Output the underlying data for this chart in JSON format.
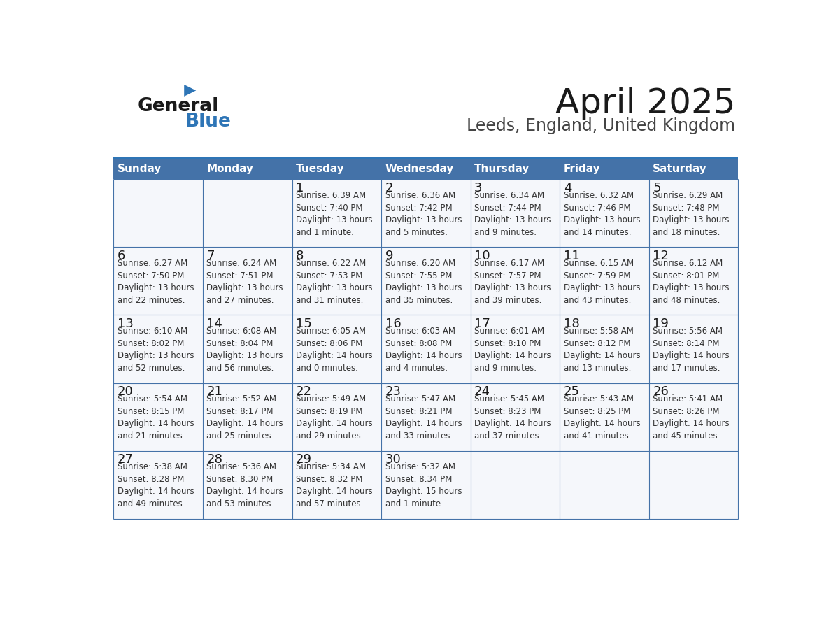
{
  "title": "April 2025",
  "subtitle": "Leeds, England, United Kingdom",
  "days_of_week": [
    "Sunday",
    "Monday",
    "Tuesday",
    "Wednesday",
    "Thursday",
    "Friday",
    "Saturday"
  ],
  "header_bg": "#4472a8",
  "header_text": "#ffffff",
  "border_color": "#4472a8",
  "text_color": "#333333",
  "day_num_color": "#222222",
  "cell_bg": "#f5f7fb",
  "calendar_data": [
    [
      {
        "day": null,
        "text": ""
      },
      {
        "day": null,
        "text": ""
      },
      {
        "day": 1,
        "text": "Sunrise: 6:39 AM\nSunset: 7:40 PM\nDaylight: 13 hours\nand 1 minute."
      },
      {
        "day": 2,
        "text": "Sunrise: 6:36 AM\nSunset: 7:42 PM\nDaylight: 13 hours\nand 5 minutes."
      },
      {
        "day": 3,
        "text": "Sunrise: 6:34 AM\nSunset: 7:44 PM\nDaylight: 13 hours\nand 9 minutes."
      },
      {
        "day": 4,
        "text": "Sunrise: 6:32 AM\nSunset: 7:46 PM\nDaylight: 13 hours\nand 14 minutes."
      },
      {
        "day": 5,
        "text": "Sunrise: 6:29 AM\nSunset: 7:48 PM\nDaylight: 13 hours\nand 18 minutes."
      }
    ],
    [
      {
        "day": 6,
        "text": "Sunrise: 6:27 AM\nSunset: 7:50 PM\nDaylight: 13 hours\nand 22 minutes."
      },
      {
        "day": 7,
        "text": "Sunrise: 6:24 AM\nSunset: 7:51 PM\nDaylight: 13 hours\nand 27 minutes."
      },
      {
        "day": 8,
        "text": "Sunrise: 6:22 AM\nSunset: 7:53 PM\nDaylight: 13 hours\nand 31 minutes."
      },
      {
        "day": 9,
        "text": "Sunrise: 6:20 AM\nSunset: 7:55 PM\nDaylight: 13 hours\nand 35 minutes."
      },
      {
        "day": 10,
        "text": "Sunrise: 6:17 AM\nSunset: 7:57 PM\nDaylight: 13 hours\nand 39 minutes."
      },
      {
        "day": 11,
        "text": "Sunrise: 6:15 AM\nSunset: 7:59 PM\nDaylight: 13 hours\nand 43 minutes."
      },
      {
        "day": 12,
        "text": "Sunrise: 6:12 AM\nSunset: 8:01 PM\nDaylight: 13 hours\nand 48 minutes."
      }
    ],
    [
      {
        "day": 13,
        "text": "Sunrise: 6:10 AM\nSunset: 8:02 PM\nDaylight: 13 hours\nand 52 minutes."
      },
      {
        "day": 14,
        "text": "Sunrise: 6:08 AM\nSunset: 8:04 PM\nDaylight: 13 hours\nand 56 minutes."
      },
      {
        "day": 15,
        "text": "Sunrise: 6:05 AM\nSunset: 8:06 PM\nDaylight: 14 hours\nand 0 minutes."
      },
      {
        "day": 16,
        "text": "Sunrise: 6:03 AM\nSunset: 8:08 PM\nDaylight: 14 hours\nand 4 minutes."
      },
      {
        "day": 17,
        "text": "Sunrise: 6:01 AM\nSunset: 8:10 PM\nDaylight: 14 hours\nand 9 minutes."
      },
      {
        "day": 18,
        "text": "Sunrise: 5:58 AM\nSunset: 8:12 PM\nDaylight: 14 hours\nand 13 minutes."
      },
      {
        "day": 19,
        "text": "Sunrise: 5:56 AM\nSunset: 8:14 PM\nDaylight: 14 hours\nand 17 minutes."
      }
    ],
    [
      {
        "day": 20,
        "text": "Sunrise: 5:54 AM\nSunset: 8:15 PM\nDaylight: 14 hours\nand 21 minutes."
      },
      {
        "day": 21,
        "text": "Sunrise: 5:52 AM\nSunset: 8:17 PM\nDaylight: 14 hours\nand 25 minutes."
      },
      {
        "day": 22,
        "text": "Sunrise: 5:49 AM\nSunset: 8:19 PM\nDaylight: 14 hours\nand 29 minutes."
      },
      {
        "day": 23,
        "text": "Sunrise: 5:47 AM\nSunset: 8:21 PM\nDaylight: 14 hours\nand 33 minutes."
      },
      {
        "day": 24,
        "text": "Sunrise: 5:45 AM\nSunset: 8:23 PM\nDaylight: 14 hours\nand 37 minutes."
      },
      {
        "day": 25,
        "text": "Sunrise: 5:43 AM\nSunset: 8:25 PM\nDaylight: 14 hours\nand 41 minutes."
      },
      {
        "day": 26,
        "text": "Sunrise: 5:41 AM\nSunset: 8:26 PM\nDaylight: 14 hours\nand 45 minutes."
      }
    ],
    [
      {
        "day": 27,
        "text": "Sunrise: 5:38 AM\nSunset: 8:28 PM\nDaylight: 14 hours\nand 49 minutes."
      },
      {
        "day": 28,
        "text": "Sunrise: 5:36 AM\nSunset: 8:30 PM\nDaylight: 14 hours\nand 53 minutes."
      },
      {
        "day": 29,
        "text": "Sunrise: 5:34 AM\nSunset: 8:32 PM\nDaylight: 14 hours\nand 57 minutes."
      },
      {
        "day": 30,
        "text": "Sunrise: 5:32 AM\nSunset: 8:34 PM\nDaylight: 15 hours\nand 1 minute."
      },
      {
        "day": null,
        "text": ""
      },
      {
        "day": null,
        "text": ""
      },
      {
        "day": null,
        "text": ""
      }
    ]
  ]
}
